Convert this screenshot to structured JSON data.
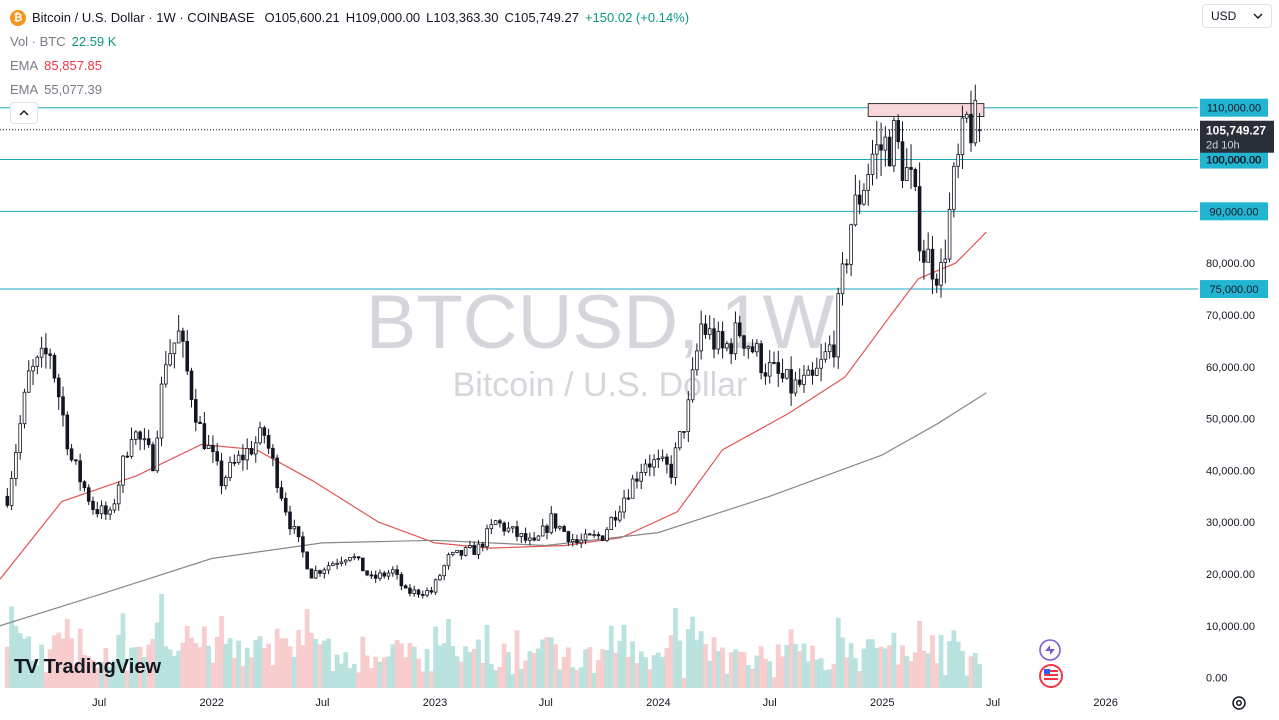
{
  "header": {
    "symbol_badge": "₿",
    "title": "Bitcoin / U.S. Dollar · 1W · COINBASE",
    "open_label": "O",
    "open": "105,600.21",
    "high_label": "H",
    "high": "109,000.00",
    "low_label": "L",
    "low": "103,363.30",
    "close_label": "C",
    "close": "105,749.27",
    "change": "+150.02 (+0.14%)"
  },
  "indicators": {
    "vol_name": "Vol · BTC",
    "vol_value": "22.59 K",
    "ema1_name": "EMA",
    "ema1_value": "85,857.85",
    "ema2_name": "EMA",
    "ema2_value": "55,077.39"
  },
  "currency": {
    "label": "USD",
    "icon": "chevron-down-icon"
  },
  "watermark": {
    "symbol": "BTCUSD, 1W",
    "description": "Bitcoin / U.S. Dollar"
  },
  "branding": {
    "logo_mark": "TV",
    "logo_text": "TradingView"
  },
  "colors": {
    "up": "#089981",
    "down": "#f23645",
    "ema_fast": "#e35454",
    "ema_slow": "#888888",
    "hline": "#1aa9c4",
    "hline_label_bg": "#22b5d2",
    "zone_fill": "#f8d7da",
    "zone_border": "#333333",
    "price_label_bg": "#2a2e39"
  },
  "chart_data": {
    "type": "candlestick",
    "timeframe": "1W",
    "y_axis": {
      "range": [
        -2000,
        125000
      ],
      "ticks": [
        "0.00",
        "10,000.00",
        "20,000.00",
        "30,000.00",
        "40,000.00",
        "50,000.00",
        "60,000.00",
        "70,000.00",
        "80,000.00",
        "100,000.00"
      ],
      "tick_values": [
        0,
        10000,
        20000,
        30000,
        40000,
        50000,
        60000,
        70000,
        80000,
        100000
      ]
    },
    "x_axis": {
      "ticks": [
        "Jul",
        "2022",
        "Jul",
        "2023",
        "Jul",
        "2024",
        "Jul",
        "2025",
        "Jul",
        "2026"
      ],
      "tick_dates": [
        "2021-07-01",
        "2022-01-01",
        "2022-07-01",
        "2023-01-01",
        "2023-07-01",
        "2024-01-01",
        "2024-07-01",
        "2025-01-01",
        "2025-07-01",
        "2026-01-01"
      ],
      "range": [
        "2021-01-20",
        "2026-06-01"
      ]
    },
    "horizontal_levels": [
      {
        "value": 110000,
        "label": "110,000.00"
      },
      {
        "value": 100000,
        "label": "100,000.00"
      },
      {
        "value": 90000,
        "label": "90,000.00"
      },
      {
        "value": 75000,
        "label": "75,000.00"
      }
    ],
    "last_price": {
      "value": 105749.27,
      "label": "105,749.27",
      "countdown": "2d 10h"
    },
    "zone": {
      "from_date": "2024-12-09",
      "to_date": "2025-06-16",
      "low": 108300,
      "high": 110800
    },
    "price_key_points": [
      [
        "2021-02-01",
        35000
      ],
      [
        "2021-03-08",
        58000
      ],
      [
        "2021-04-12",
        63000
      ],
      [
        "2021-05-17",
        42000
      ],
      [
        "2021-06-21",
        33000
      ],
      [
        "2021-07-19",
        31000
      ],
      [
        "2021-08-23",
        48000
      ],
      [
        "2021-09-27",
        42000
      ],
      [
        "2021-10-18",
        62000
      ],
      [
        "2021-11-08",
        66000
      ],
      [
        "2021-12-13",
        48000
      ],
      [
        "2022-01-17",
        38000
      ],
      [
        "2022-02-14",
        42000
      ],
      [
        "2022-03-28",
        47000
      ],
      [
        "2022-05-09",
        30000
      ],
      [
        "2022-06-13",
        20000
      ],
      [
        "2022-08-15",
        24000
      ],
      [
        "2022-09-19",
        19000
      ],
      [
        "2022-10-24",
        20500
      ],
      [
        "2022-11-14",
        16500
      ],
      [
        "2022-12-26",
        16600
      ],
      [
        "2023-01-23",
        23000
      ],
      [
        "2023-03-13",
        25000
      ],
      [
        "2023-04-10",
        30000
      ],
      [
        "2023-06-12",
        25500
      ],
      [
        "2023-07-10",
        30500
      ],
      [
        "2023-08-21",
        26000
      ],
      [
        "2023-10-02",
        27500
      ],
      [
        "2023-11-06",
        35000
      ],
      [
        "2023-12-11",
        42000
      ],
      [
        "2024-01-22",
        40000
      ],
      [
        "2024-02-19",
        52000
      ],
      [
        "2024-03-11",
        68000
      ],
      [
        "2024-04-15",
        63000
      ],
      [
        "2024-05-13",
        67000
      ],
      [
        "2024-06-24",
        60000
      ],
      [
        "2024-08-05",
        56000
      ],
      [
        "2024-09-09",
        57000
      ],
      [
        "2024-10-14",
        65000
      ],
      [
        "2024-11-11",
        88000
      ],
      [
        "2024-12-16",
        101000
      ],
      [
        "2025-01-20",
        104000
      ],
      [
        "2025-02-17",
        95000
      ],
      [
        "2025-03-10",
        82000
      ],
      [
        "2025-04-07",
        78000
      ],
      [
        "2025-04-28",
        95000
      ],
      [
        "2025-05-19",
        107000
      ],
      [
        "2025-06-09",
        105749
      ]
    ],
    "ema_fast_points": [
      [
        "2021-01-20",
        19000
      ],
      [
        "2021-05-01",
        34000
      ],
      [
        "2021-09-01",
        39000
      ],
      [
        "2021-12-15",
        45000
      ],
      [
        "2022-03-15",
        44000
      ],
      [
        "2022-06-15",
        38000
      ],
      [
        "2022-10-01",
        30000
      ],
      [
        "2023-01-01",
        26000
      ],
      [
        "2023-04-01",
        25000
      ],
      [
        "2023-08-01",
        25500
      ],
      [
        "2023-11-01",
        27000
      ],
      [
        "2024-02-01",
        32000
      ],
      [
        "2024-04-15",
        44000
      ],
      [
        "2024-08-01",
        51000
      ],
      [
        "2024-11-01",
        58000
      ],
      [
        "2025-01-15",
        70000
      ],
      [
        "2025-03-01",
        77000
      ],
      [
        "2025-05-01",
        80000
      ],
      [
        "2025-06-20",
        86000
      ]
    ],
    "ema_slow_points": [
      [
        "2021-01-20",
        10000
      ],
      [
        "2021-07-01",
        16000
      ],
      [
        "2022-01-01",
        23000
      ],
      [
        "2022-07-01",
        26000
      ],
      [
        "2023-01-01",
        26500
      ],
      [
        "2023-07-01",
        25500
      ],
      [
        "2024-01-01",
        28000
      ],
      [
        "2024-07-01",
        35000
      ],
      [
        "2025-01-01",
        43000
      ],
      [
        "2025-04-01",
        49000
      ],
      [
        "2025-06-20",
        55000
      ]
    ],
    "volume_scale_max": 30000
  }
}
